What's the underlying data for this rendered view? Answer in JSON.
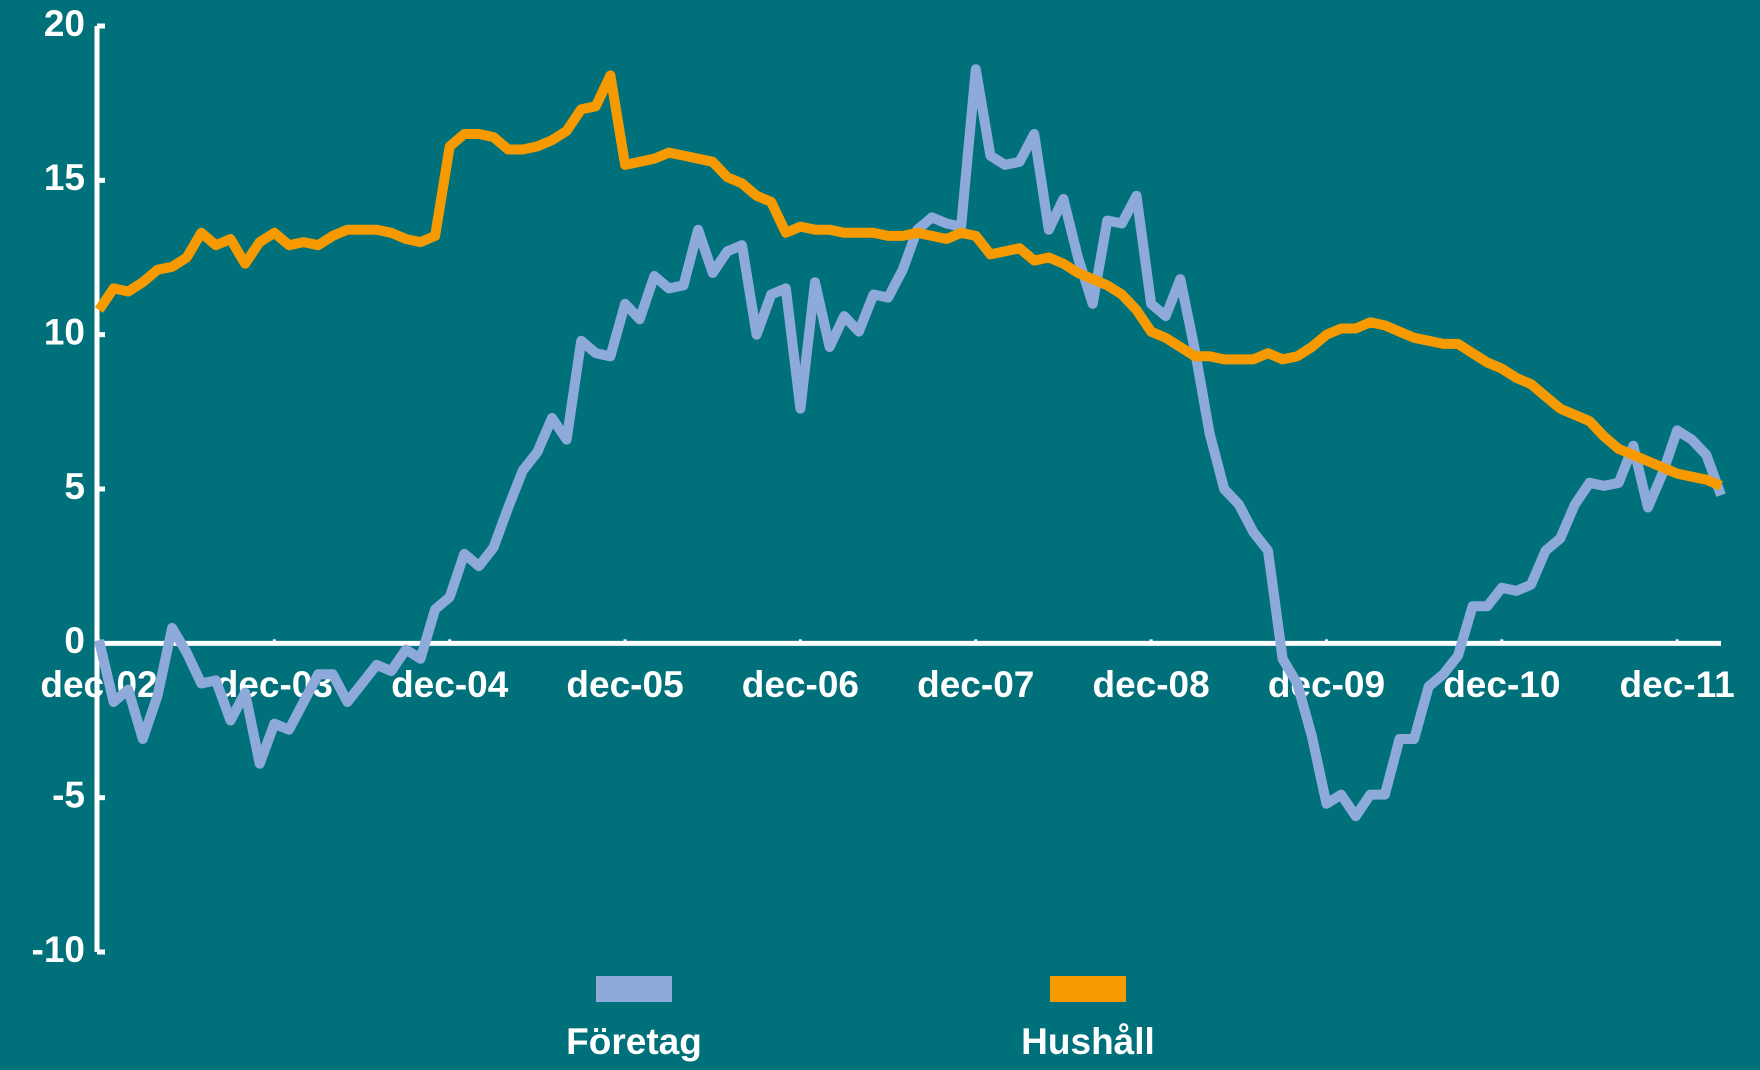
{
  "chart_data": {
    "type": "line",
    "categories": [
      "dec-02",
      null,
      null,
      null,
      null,
      null,
      null,
      null,
      null,
      null,
      null,
      null,
      "dec-03",
      null,
      null,
      null,
      null,
      null,
      null,
      null,
      null,
      null,
      null,
      null,
      "dec-04",
      null,
      null,
      null,
      null,
      null,
      null,
      null,
      null,
      null,
      null,
      null,
      "dec-05",
      null,
      null,
      null,
      null,
      null,
      null,
      null,
      null,
      null,
      null,
      null,
      "dec-06",
      null,
      null,
      null,
      null,
      null,
      null,
      null,
      null,
      null,
      null,
      null,
      "dec-07",
      null,
      null,
      null,
      null,
      null,
      null,
      null,
      null,
      null,
      null,
      null,
      "dec-08",
      null,
      null,
      null,
      null,
      null,
      null,
      null,
      null,
      null,
      null,
      null,
      "dec-09",
      null,
      null,
      null,
      null,
      null,
      null,
      null,
      null,
      null,
      null,
      null,
      "dec-10",
      null,
      null,
      null,
      null,
      null,
      null,
      null,
      null,
      null,
      null,
      null,
      "dec-11",
      null,
      null,
      null
    ],
    "series": [
      {
        "name": "Företag",
        "color": "#8eaadb",
        "values": [
          0.1,
          -1.9,
          -1.5,
          -3.1,
          -1.7,
          0.5,
          -0.3,
          -1.3,
          -1.2,
          -2.5,
          -1.6,
          -3.9,
          -2.6,
          -2.8,
          -1.9,
          -1.0,
          -1.0,
          -1.9,
          -1.3,
          -0.7,
          -0.9,
          -0.2,
          -0.5,
          1.1,
          1.5,
          2.9,
          2.5,
          3.1,
          4.4,
          5.6,
          6.2,
          7.3,
          6.6,
          9.8,
          9.4,
          9.3,
          11.0,
          10.5,
          11.9,
          11.5,
          11.6,
          13.4,
          12.0,
          12.7,
          12.9,
          10.0,
          11.3,
          11.5,
          7.6,
          11.7,
          9.6,
          10.6,
          10.1,
          11.3,
          11.2,
          12.1,
          13.4,
          13.8,
          13.6,
          13.5,
          18.6,
          15.8,
          15.5,
          15.6,
          16.5,
          13.4,
          14.4,
          12.5,
          11.0,
          13.7,
          13.6,
          14.5,
          11.0,
          10.6,
          11.8,
          9.5,
          6.8,
          5.0,
          4.5,
          3.6,
          3.0,
          -0.5,
          -1.3,
          -3.0,
          -5.2,
          -4.9,
          -5.6,
          -4.9,
          -4.9,
          -3.1,
          -3.1,
          -1.4,
          -1.0,
          -0.4,
          1.2,
          1.2,
          1.8,
          1.7,
          1.9,
          3.0,
          3.4,
          4.5,
          5.2,
          5.1,
          5.2,
          6.4,
          4.4,
          5.5,
          6.9,
          6.6,
          6.1,
          4.8
        ]
      },
      {
        "name": "Hushåll",
        "color": "#f79a00",
        "values": [
          10.8,
          11.5,
          11.4,
          11.7,
          12.1,
          12.2,
          12.5,
          13.3,
          12.9,
          13.1,
          12.3,
          13.0,
          13.3,
          12.9,
          13.0,
          12.9,
          13.2,
          13.4,
          13.4,
          13.4,
          13.3,
          13.1,
          13.0,
          13.2,
          16.1,
          16.5,
          16.5,
          16.4,
          16.0,
          16.0,
          16.1,
          16.3,
          16.6,
          17.3,
          17.4,
          18.4,
          15.5,
          15.6,
          15.7,
          15.9,
          15.8,
          15.7,
          15.6,
          15.1,
          14.9,
          14.5,
          14.3,
          13.3,
          13.5,
          13.4,
          13.4,
          13.3,
          13.3,
          13.3,
          13.2,
          13.2,
          13.3,
          13.2,
          13.1,
          13.3,
          13.2,
          12.6,
          12.7,
          12.8,
          12.4,
          12.5,
          12.3,
          12.0,
          11.8,
          11.6,
          11.3,
          10.8,
          10.1,
          9.9,
          9.6,
          9.3,
          9.3,
          9.2,
          9.2,
          9.2,
          9.4,
          9.2,
          9.3,
          9.6,
          10.0,
          10.2,
          10.2,
          10.4,
          10.3,
          10.1,
          9.9,
          9.8,
          9.7,
          9.7,
          9.4,
          9.1,
          8.9,
          8.6,
          8.4,
          8.0,
          7.6,
          7.4,
          7.2,
          6.7,
          6.3,
          6.1,
          5.9,
          5.7,
          5.5,
          5.4,
          5.3,
          5.1
        ]
      }
    ],
    "ylim": [
      -10,
      20
    ],
    "yticks": [
      -10,
      -5,
      0,
      5,
      10,
      15,
      20
    ],
    "legend": "bottom"
  }
}
